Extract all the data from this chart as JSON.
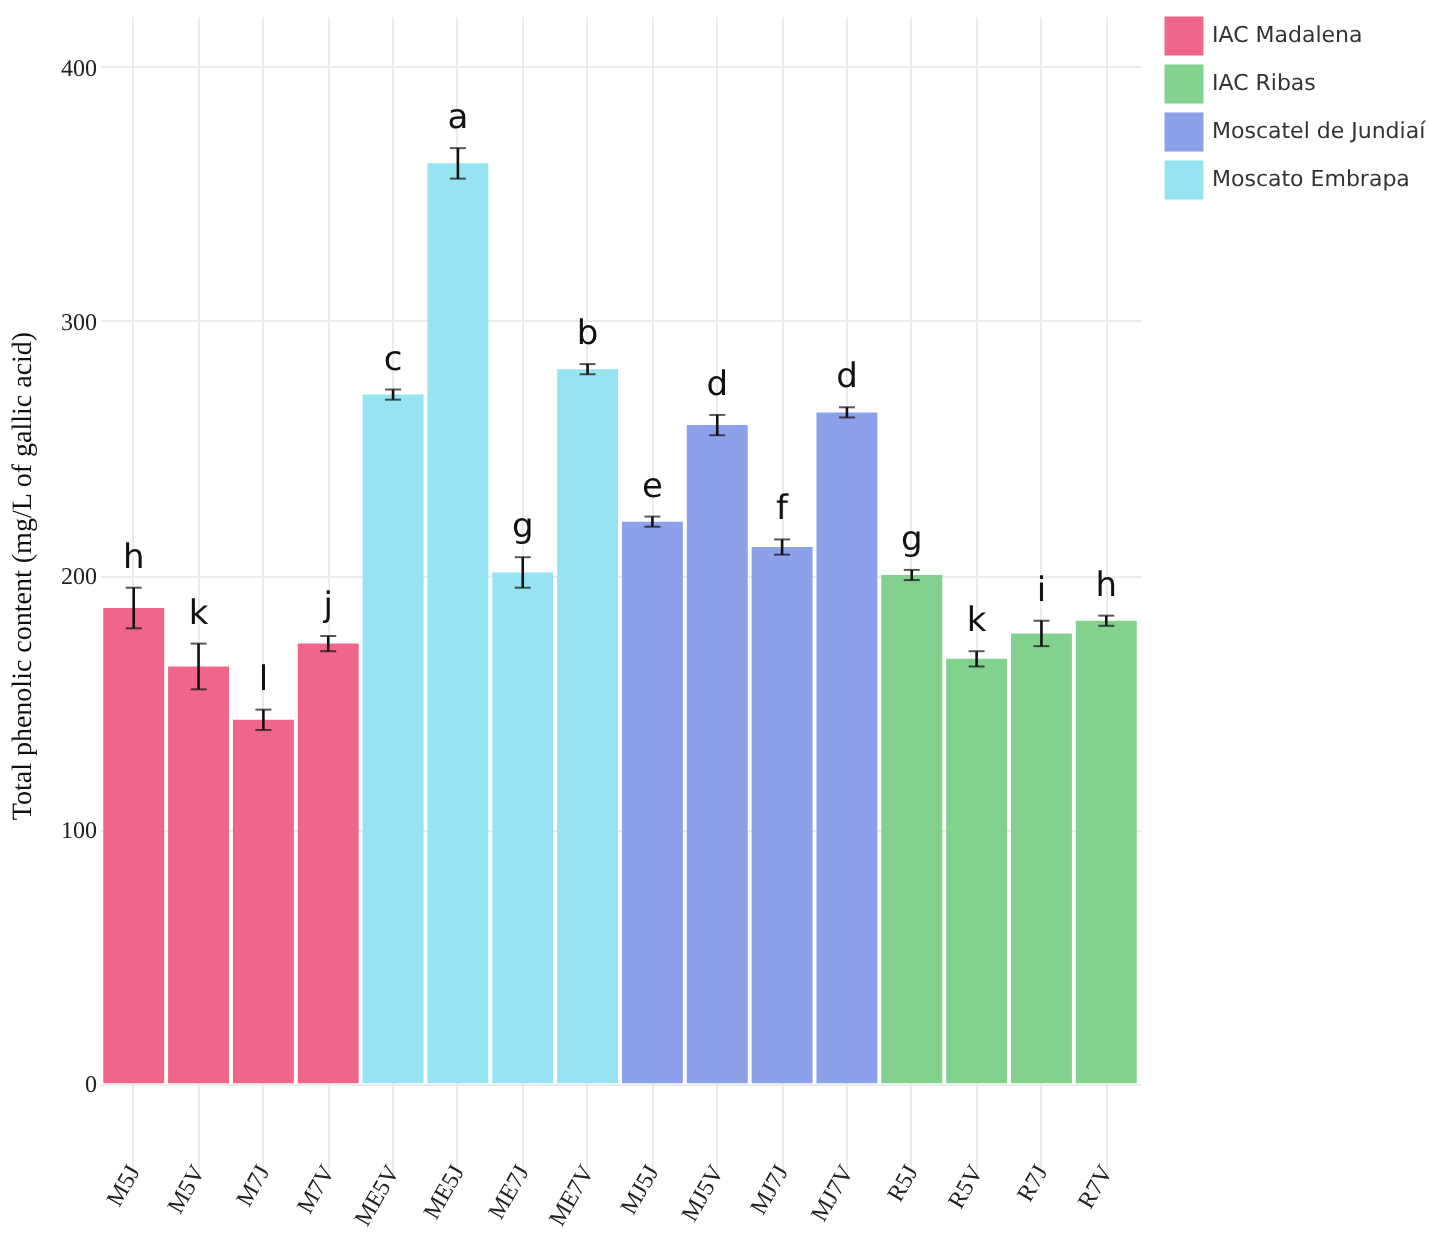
{
  "chart_data": {
    "type": "bar",
    "ylabel": "Total phenolic content (mg/L of gallic acid)",
    "categories": [
      "M5J",
      "M5V",
      "M7J",
      "M7V",
      "ME5V",
      "ME5J",
      "ME7J",
      "ME7V",
      "MJ5J",
      "MJ5V",
      "MJ7J",
      "MJ7V",
      "R5J",
      "R5V",
      "R7J",
      "R7V"
    ],
    "series": [
      {
        "name": "IAC Madalena",
        "color": "#f0668a",
        "values": [
          187,
          164,
          143,
          173,
          null,
          null,
          null,
          null,
          null,
          null,
          null,
          null,
          null,
          null,
          null,
          null
        ],
        "errors": [
          8,
          9,
          4,
          3,
          null,
          null,
          null,
          null,
          null,
          null,
          null,
          null,
          null,
          null,
          null,
          null
        ]
      },
      {
        "name": "IAC Ribas",
        "color": "#82d18f",
        "values": [
          null,
          null,
          null,
          null,
          null,
          null,
          null,
          null,
          null,
          null,
          null,
          null,
          200,
          167,
          177,
          182
        ],
        "errors": [
          null,
          null,
          null,
          null,
          null,
          null,
          null,
          null,
          null,
          null,
          null,
          null,
          2,
          3,
          5,
          2
        ]
      },
      {
        "name": "Moscatel de Jundiaí",
        "color": "#8da0ea",
        "values": [
          null,
          null,
          null,
          null,
          null,
          null,
          null,
          null,
          221,
          259,
          211,
          264,
          null,
          null,
          null,
          null
        ],
        "errors": [
          null,
          null,
          null,
          null,
          null,
          null,
          null,
          null,
          2,
          4,
          3,
          2,
          null,
          null,
          null,
          null
        ]
      },
      {
        "name": "Moscato Embrapa",
        "color": "#96e4f2",
        "values": [
          null,
          null,
          null,
          null,
          271,
          362,
          201,
          281,
          null,
          null,
          null,
          null,
          null,
          null,
          null,
          null
        ],
        "errors": [
          null,
          null,
          null,
          null,
          2,
          6,
          6,
          2,
          null,
          null,
          null,
          null,
          null,
          null,
          null,
          null
        ]
      }
    ],
    "annotations": [
      "h",
      "k",
      "l",
      "j",
      "c",
      "a",
      "g",
      "b",
      "e",
      "d",
      "f",
      "d",
      "g",
      "k",
      "i",
      "h"
    ],
    "ylim": [
      -20,
      420
    ],
    "yticks": [
      0,
      100,
      200,
      300,
      400
    ],
    "grid": true,
    "legend": "right"
  }
}
